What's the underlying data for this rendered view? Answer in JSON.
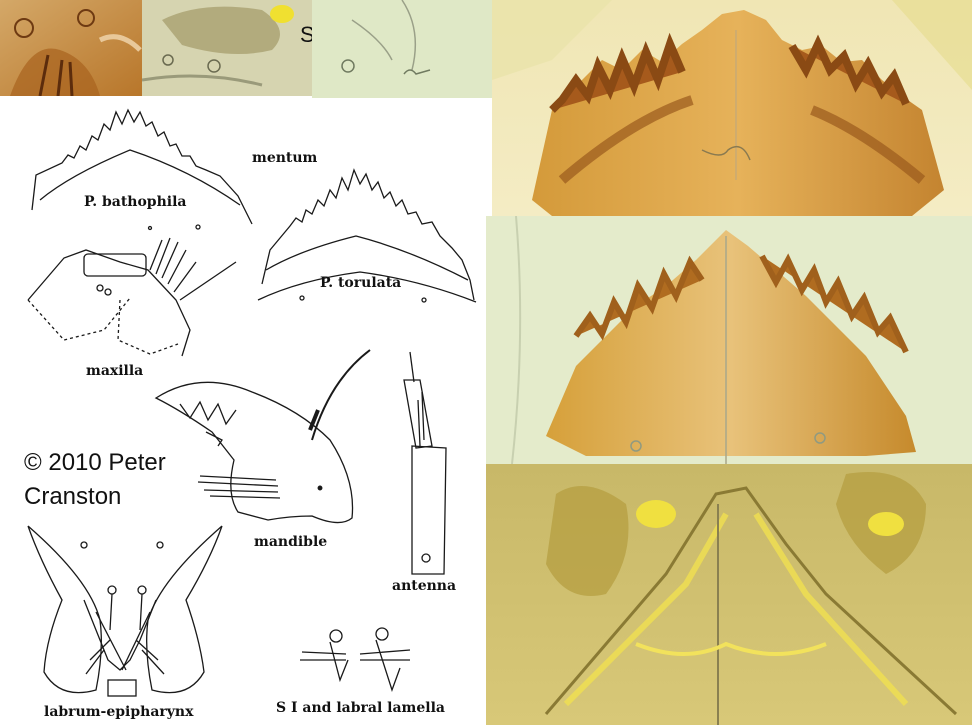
{
  "figure": {
    "top_strip_label": "SI",
    "copyright_line1": "© 2010 Peter",
    "copyright_line2": "Cranston",
    "labels": {
      "mentum": "mentum",
      "p_bathophila": "P. bathophila",
      "p_torulata": "P. torulata",
      "maxilla": "maxilla",
      "mandible": "mandible",
      "antenna": "antenna",
      "labrum": "labrum-epipharynx",
      "si_lamella": "S I and labral lamella"
    }
  },
  "colors": {
    "micrograph_light": "#e6ebc4",
    "micrograph_amber": "#c98a24",
    "micrograph_dark": "#8a4a14",
    "micrograph_yellow": "#d8c24a",
    "line_art": "#1a1a1a"
  }
}
